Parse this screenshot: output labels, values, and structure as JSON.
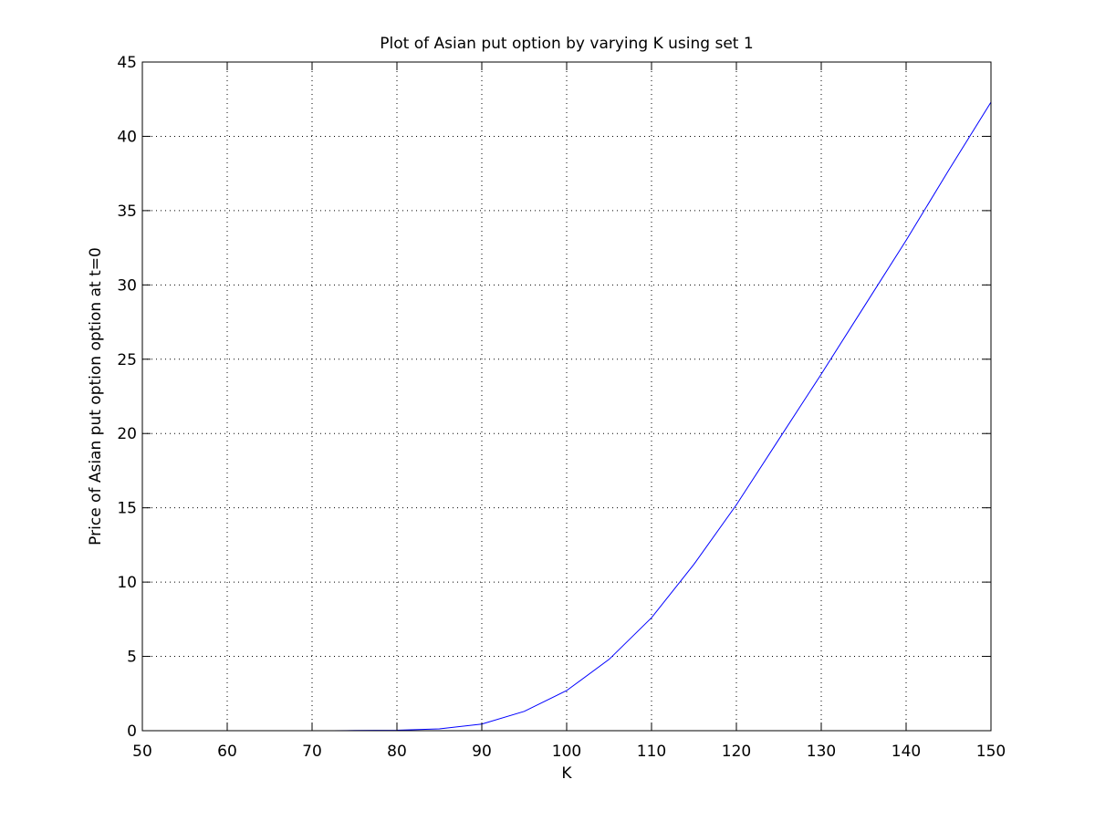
{
  "chart_data": {
    "type": "line",
    "title": "Plot of Asian put option by varying K using set 1",
    "xlabel": "K",
    "ylabel": "Price of Asian put option option at t=0",
    "xlim": [
      50,
      150
    ],
    "ylim": [
      0,
      45
    ],
    "xticks": [
      50,
      60,
      70,
      80,
      90,
      100,
      110,
      120,
      130,
      140,
      150
    ],
    "yticks": [
      0,
      5,
      10,
      15,
      20,
      25,
      30,
      35,
      40,
      45
    ],
    "grid": true,
    "line_color": "#0000ff",
    "series": [
      {
        "x": [
          72.5,
          75,
          80,
          85,
          90,
          95,
          100,
          105,
          110,
          115,
          120,
          125,
          130,
          135,
          140,
          145,
          150
        ],
        "y": [
          0.0,
          0.01,
          0.03,
          0.12,
          0.45,
          1.3,
          2.7,
          4.8,
          7.6,
          11.2,
          15.2,
          19.6,
          24.0,
          28.5,
          33.0,
          37.7,
          42.3
        ]
      }
    ]
  }
}
